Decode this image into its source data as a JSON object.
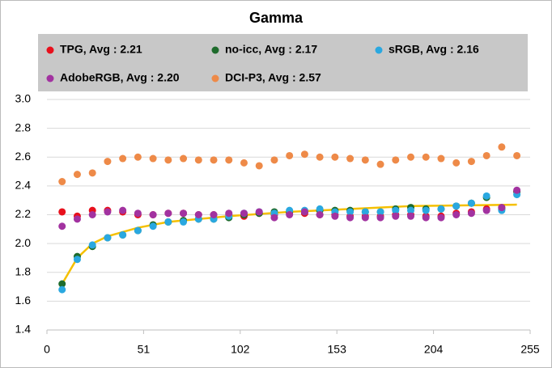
{
  "chart_data": {
    "type": "scatter",
    "title": "Gamma",
    "x": [
      8,
      16,
      24,
      32,
      40,
      48,
      56,
      64,
      72,
      80,
      88,
      96,
      104,
      112,
      120,
      128,
      136,
      144,
      152,
      160,
      168,
      176,
      184,
      192,
      200,
      208,
      216,
      224,
      232,
      240,
      248
    ],
    "series": [
      {
        "name": "TPG, Avg : 2.21",
        "color": "#e8101c",
        "values": [
          2.22,
          2.19,
          2.23,
          2.23,
          2.22,
          2.2,
          2.2,
          2.21,
          2.21,
          2.2,
          2.2,
          2.2,
          2.19,
          2.21,
          2.2,
          2.21,
          2.21,
          2.2,
          2.2,
          2.19,
          2.19,
          2.19,
          2.2,
          2.2,
          2.19,
          2.19,
          2.21,
          2.22,
          2.24,
          2.25,
          2.36
        ]
      },
      {
        "name": "no-icc, Avg : 2.17",
        "color": "#1e6b2c",
        "values": [
          1.72,
          1.91,
          1.98,
          2.04,
          2.06,
          2.09,
          2.13,
          2.15,
          2.16,
          2.17,
          2.17,
          2.18,
          2.2,
          2.21,
          2.22,
          2.22,
          2.22,
          2.23,
          2.23,
          2.23,
          2.22,
          2.22,
          2.24,
          2.25,
          2.24,
          2.24,
          2.26,
          2.28,
          2.32,
          2.24,
          2.36
        ]
      },
      {
        "name": "sRGB, Avg : 2.16",
        "color": "#2aa8e0",
        "values": [
          1.68,
          1.89,
          1.99,
          2.04,
          2.06,
          2.09,
          2.12,
          2.15,
          2.15,
          2.17,
          2.17,
          2.19,
          2.21,
          2.22,
          2.21,
          2.23,
          2.23,
          2.24,
          2.22,
          2.22,
          2.22,
          2.22,
          2.23,
          2.23,
          2.23,
          2.24,
          2.26,
          2.28,
          2.33,
          2.23,
          2.34
        ]
      },
      {
        "name": "AdobeRGB, Avg : 2.20",
        "color": "#a232a0",
        "values": [
          2.12,
          2.17,
          2.2,
          2.22,
          2.23,
          2.21,
          2.2,
          2.21,
          2.21,
          2.2,
          2.2,
          2.21,
          2.21,
          2.22,
          2.18,
          2.2,
          2.22,
          2.2,
          2.19,
          2.18,
          2.18,
          2.18,
          2.19,
          2.19,
          2.18,
          2.18,
          2.2,
          2.21,
          2.23,
          2.25,
          2.37
        ]
      },
      {
        "name": "DCI-P3, Avg : 2.57",
        "color": "#ee8a48",
        "values": [
          2.43,
          2.48,
          2.49,
          2.57,
          2.59,
          2.6,
          2.59,
          2.58,
          2.59,
          2.58,
          2.58,
          2.58,
          2.56,
          2.54,
          2.58,
          2.61,
          2.62,
          2.6,
          2.6,
          2.59,
          2.58,
          2.55,
          2.58,
          2.6,
          2.6,
          2.59,
          2.56,
          2.57,
          2.61,
          2.67,
          2.61
        ]
      }
    ],
    "trendline": {
      "color": "#f5c000",
      "x": [
        8,
        16,
        24,
        32,
        48,
        64,
        96,
        128,
        160,
        192,
        248
      ],
      "values": [
        1.72,
        1.9,
        2.0,
        2.05,
        2.11,
        2.15,
        2.19,
        2.22,
        2.24,
        2.26,
        2.27
      ]
    },
    "xlim": [
      0,
      255
    ],
    "xticks": [
      0,
      51,
      102,
      153,
      204,
      255
    ],
    "ylim": [
      1.4,
      3.0
    ],
    "yticks": [
      1.4,
      1.6,
      1.8,
      {
        "value": 2.0,
        "label": "2.0"
      },
      2.2,
      2.4,
      2.6,
      2.8,
      {
        "value": 3.0,
        "label": "3.0"
      }
    ],
    "grid": true,
    "legend": "top"
  }
}
